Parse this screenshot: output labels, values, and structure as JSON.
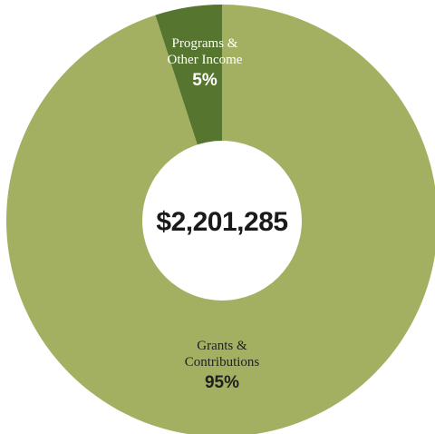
{
  "chart_data": {
    "type": "pie",
    "donut": true,
    "center_label": "$2,201,285",
    "slices": [
      {
        "label_lines": [
          "Grants &",
          "Contributions"
        ],
        "percent_label": "95%",
        "value": 95,
        "color": "#a3b062",
        "label_color": "#1f1f1f"
      },
      {
        "label_lines": [
          "Programs &",
          "Other Income"
        ],
        "percent_label": "5%",
        "value": 5,
        "color": "#56752e",
        "label_color": "#ffffff"
      }
    ],
    "legend": "none"
  }
}
